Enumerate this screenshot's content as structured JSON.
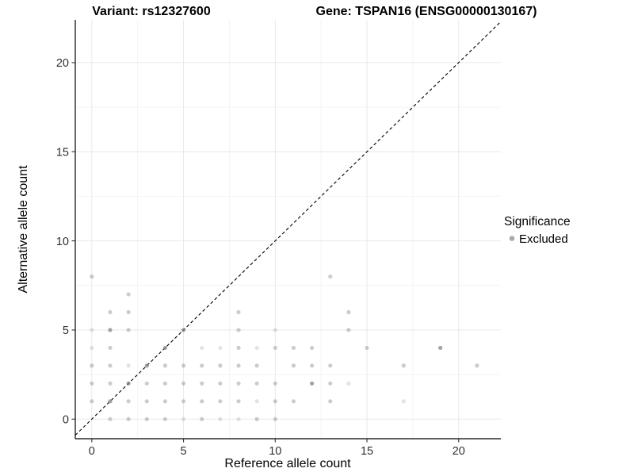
{
  "figure": {
    "background": "#ffffff"
  },
  "chart_data": {
    "type": "scatter",
    "title_variant": "Variant: rs12327600",
    "title_gene": "Gene: TSPAN16 (ENSG00000130167)",
    "xlabel": "Reference allele count",
    "ylabel": "Alternative allele count",
    "x_ticks": [
      0,
      5,
      10,
      15,
      20
    ],
    "y_ticks": [
      0,
      5,
      10,
      15,
      20
    ],
    "x_minor": [
      2.5,
      7.5,
      12.5,
      17.5
    ],
    "y_minor": [
      2.5,
      7.5,
      12.5,
      17.5
    ],
    "xlim": [
      -0.9,
      22.3
    ],
    "ylim": [
      -1.1,
      22.4
    ],
    "grid": true,
    "gridline_major_color": "#e8e8e8",
    "gridline_minor_color": "#f4f4f4",
    "axis_line_color": "#000000",
    "tick_label_color": "#303030",
    "reference_line": {
      "slope": 1,
      "intercept": 0,
      "style": "dashed",
      "color": "#000000"
    },
    "legend": {
      "title": "Significance",
      "position": "right",
      "items": [
        {
          "label": "Excluded",
          "color": "#aaaaaa"
        }
      ]
    },
    "series": [
      {
        "name": "Excluded",
        "color": "#7f7f7f",
        "point_radius": 2.6,
        "opacity_levels": {
          "l": 0.22,
          "m": 0.4,
          "d": 0.72
        },
        "points": [
          [
            1,
            0,
            "m"
          ],
          [
            2,
            0,
            "m"
          ],
          [
            3,
            0,
            "m"
          ],
          [
            4,
            0,
            "m"
          ],
          [
            5,
            0,
            "l"
          ],
          [
            6,
            0,
            "m"
          ],
          [
            7,
            0,
            "l"
          ],
          [
            8,
            0,
            "l"
          ],
          [
            9,
            0,
            "m"
          ],
          [
            10,
            0,
            "m"
          ],
          [
            0,
            1,
            "m"
          ],
          [
            1,
            1,
            "d"
          ],
          [
            2,
            1,
            "m"
          ],
          [
            3,
            1,
            "m"
          ],
          [
            4,
            1,
            "m"
          ],
          [
            5,
            1,
            "m"
          ],
          [
            6,
            1,
            "m"
          ],
          [
            7,
            1,
            "m"
          ],
          [
            8,
            1,
            "m"
          ],
          [
            9,
            1,
            "l"
          ],
          [
            10,
            1,
            "m"
          ],
          [
            11,
            1,
            "m"
          ],
          [
            13,
            1,
            "m"
          ],
          [
            17,
            1,
            "l"
          ],
          [
            0,
            2,
            "m"
          ],
          [
            1,
            2,
            "m"
          ],
          [
            2,
            2,
            "d"
          ],
          [
            3,
            2,
            "m"
          ],
          [
            4,
            2,
            "m"
          ],
          [
            5,
            2,
            "m"
          ],
          [
            6,
            2,
            "m"
          ],
          [
            7,
            2,
            "m"
          ],
          [
            8,
            2,
            "m"
          ],
          [
            9,
            2,
            "m"
          ],
          [
            10,
            2,
            "m"
          ],
          [
            12,
            2,
            "d"
          ],
          [
            13,
            2,
            "m"
          ],
          [
            14,
            2,
            "l"
          ],
          [
            0,
            3,
            "m"
          ],
          [
            1,
            3,
            "m"
          ],
          [
            2,
            3,
            "l"
          ],
          [
            3,
            3,
            "d"
          ],
          [
            4,
            3,
            "m"
          ],
          [
            5,
            3,
            "m"
          ],
          [
            6,
            3,
            "m"
          ],
          [
            7,
            3,
            "m"
          ],
          [
            8,
            3,
            "m"
          ],
          [
            9,
            3,
            "m"
          ],
          [
            11,
            3,
            "m"
          ],
          [
            12,
            3,
            "m"
          ],
          [
            13,
            3,
            "m"
          ],
          [
            17,
            3,
            "m"
          ],
          [
            21,
            3,
            "m"
          ],
          [
            0,
            4,
            "l"
          ],
          [
            1,
            4,
            "m"
          ],
          [
            4,
            4,
            "d"
          ],
          [
            6,
            4,
            "l"
          ],
          [
            7,
            4,
            "l"
          ],
          [
            8,
            4,
            "m"
          ],
          [
            9,
            4,
            "l"
          ],
          [
            10,
            4,
            "m"
          ],
          [
            11,
            4,
            "m"
          ],
          [
            12,
            4,
            "m"
          ],
          [
            15,
            4,
            "m"
          ],
          [
            19,
            4,
            "d"
          ],
          [
            0,
            5,
            "l"
          ],
          [
            1,
            5,
            "d"
          ],
          [
            2,
            5,
            "m"
          ],
          [
            5,
            5,
            "d"
          ],
          [
            8,
            5,
            "m"
          ],
          [
            10,
            5,
            "l"
          ],
          [
            14,
            5,
            "m"
          ],
          [
            1,
            6,
            "m"
          ],
          [
            2,
            6,
            "m"
          ],
          [
            8,
            6,
            "m"
          ],
          [
            14,
            6,
            "m"
          ],
          [
            2,
            7,
            "m"
          ],
          [
            0,
            8,
            "m"
          ],
          [
            13,
            8,
            "m"
          ]
        ]
      }
    ]
  }
}
